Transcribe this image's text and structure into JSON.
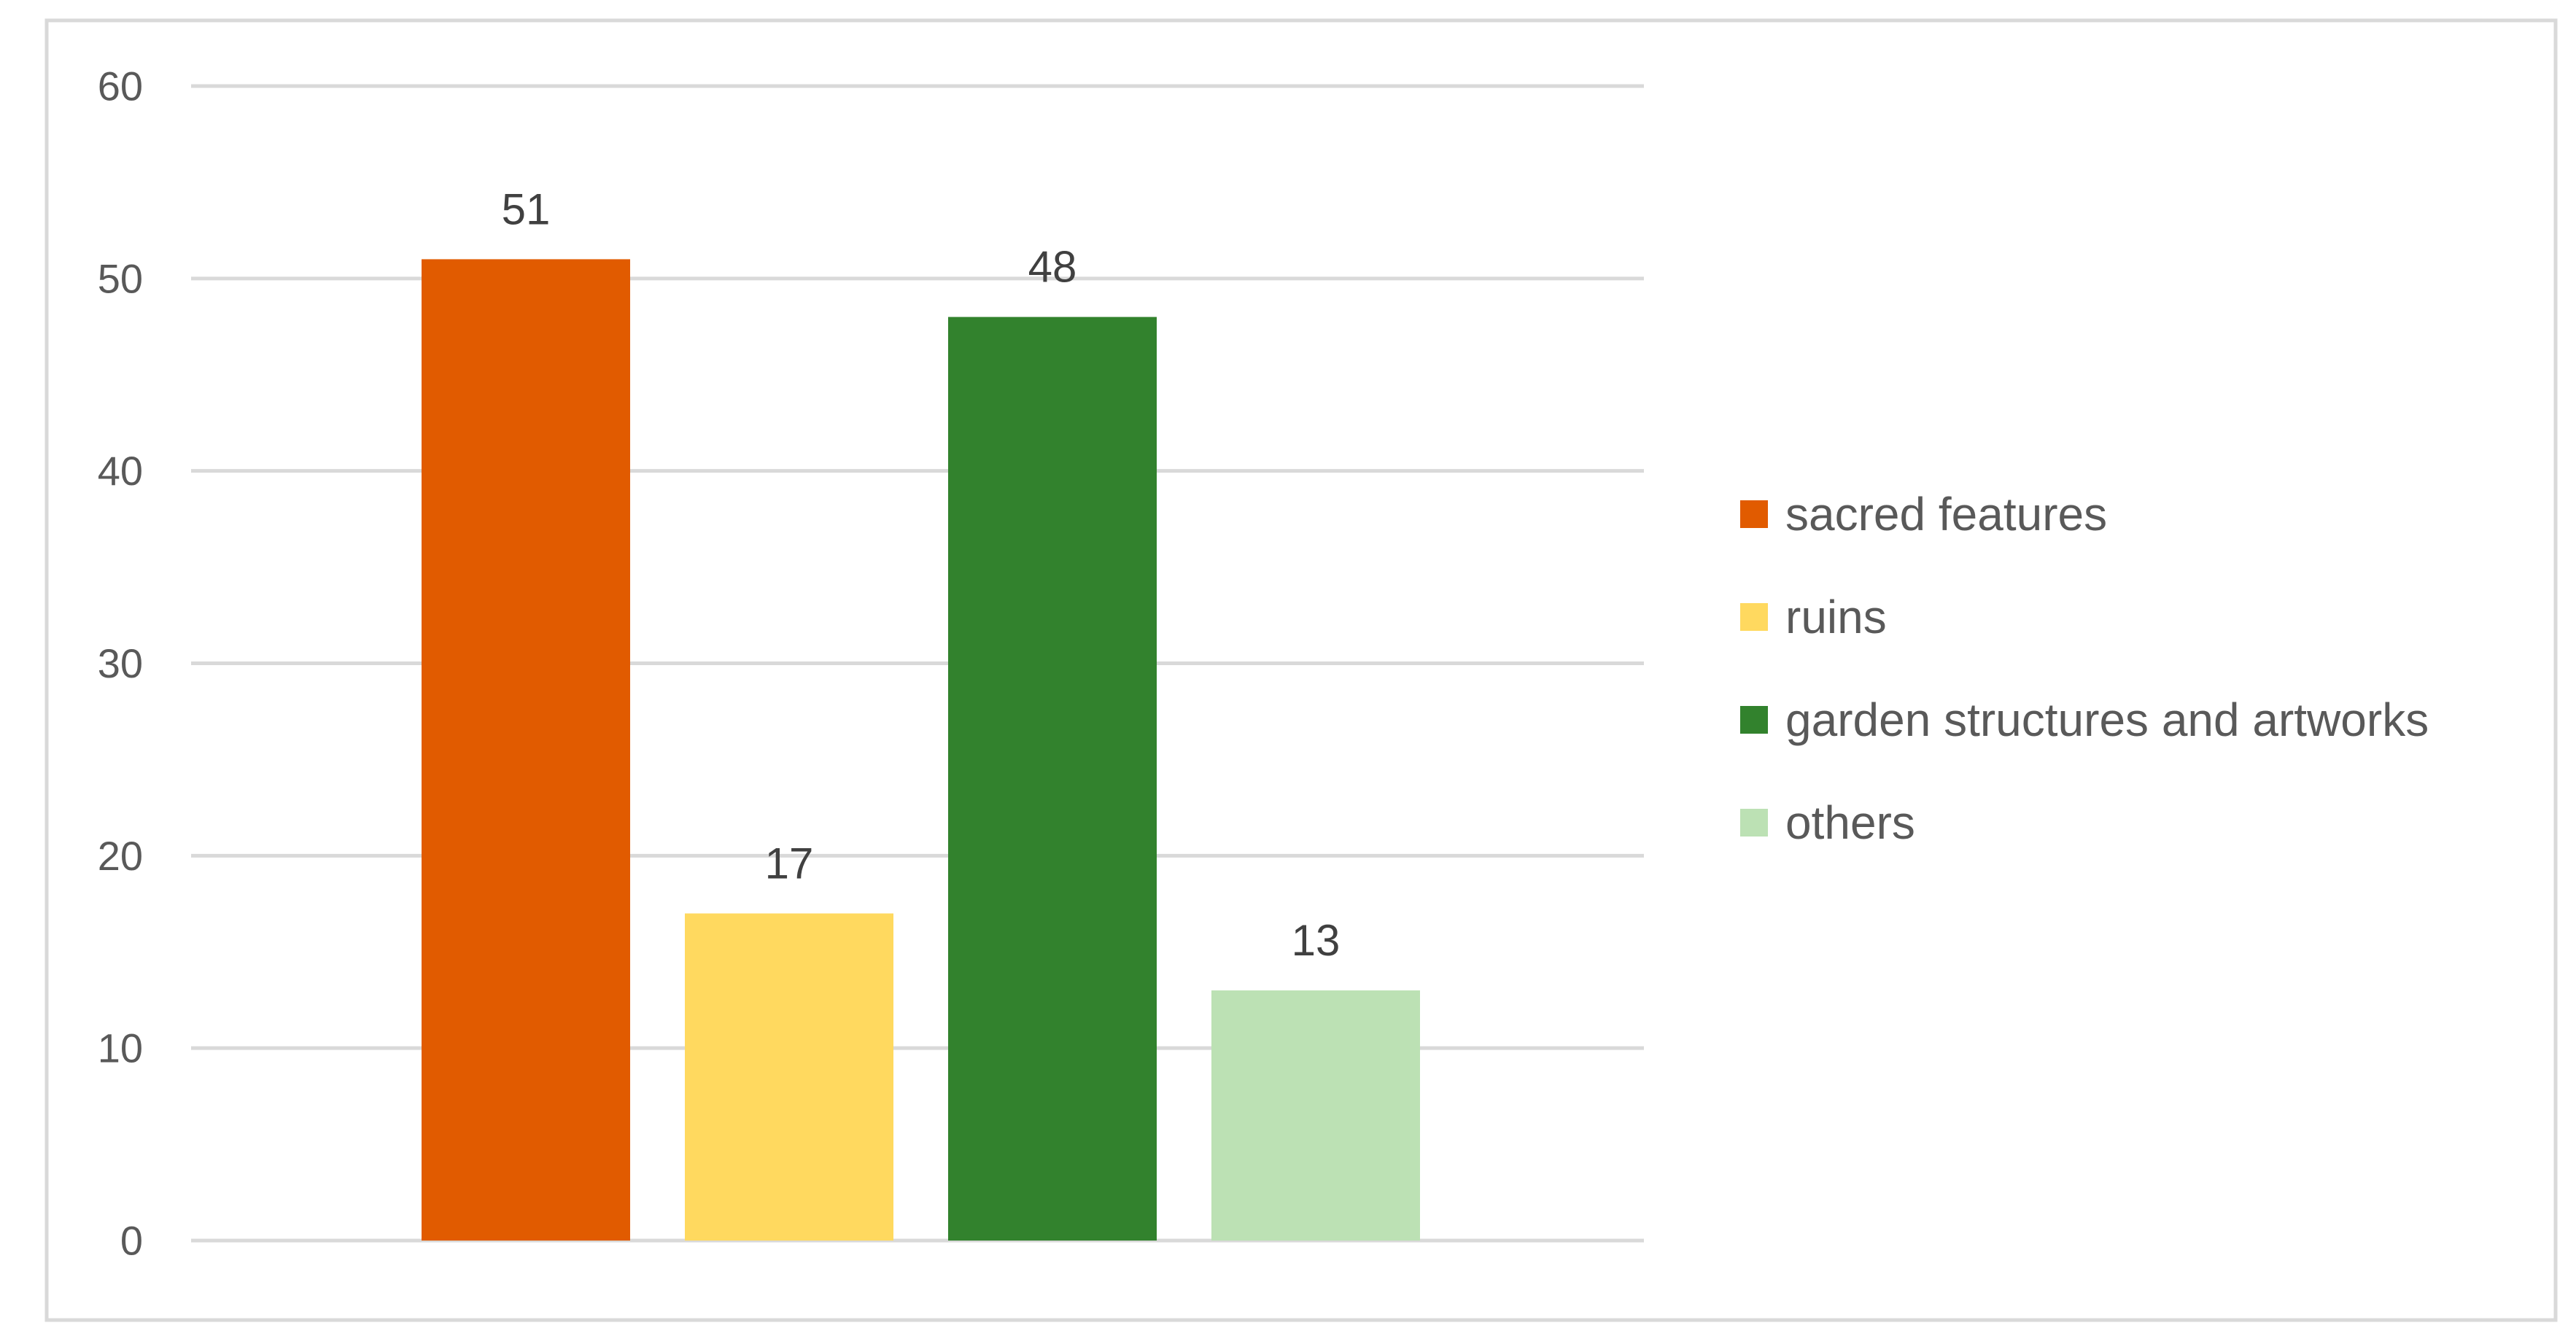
{
  "chart_data": {
    "type": "bar",
    "title": "",
    "xlabel": "",
    "ylabel": "",
    "ylim": [
      0,
      60
    ],
    "yticks": [
      0,
      10,
      20,
      30,
      40,
      50,
      60
    ],
    "grid": true,
    "legend_position": "right",
    "show_data_labels": true,
    "series": [
      {
        "name": "sacred features",
        "values": [
          51
        ],
        "color": "#E15B00"
      },
      {
        "name": "ruins",
        "values": [
          17
        ],
        "color": "#FFD95F"
      },
      {
        "name": "garden structures and artworks",
        "values": [
          48
        ],
        "color": "#32822D"
      },
      {
        "name": "others",
        "values": [
          13
        ],
        "color": "#BCE1B4"
      }
    ],
    "colors": {
      "frame": "#D9D9D9",
      "grid": "#D9D9D9",
      "axis_text": "#595959",
      "data_label_text": "#404040"
    }
  }
}
